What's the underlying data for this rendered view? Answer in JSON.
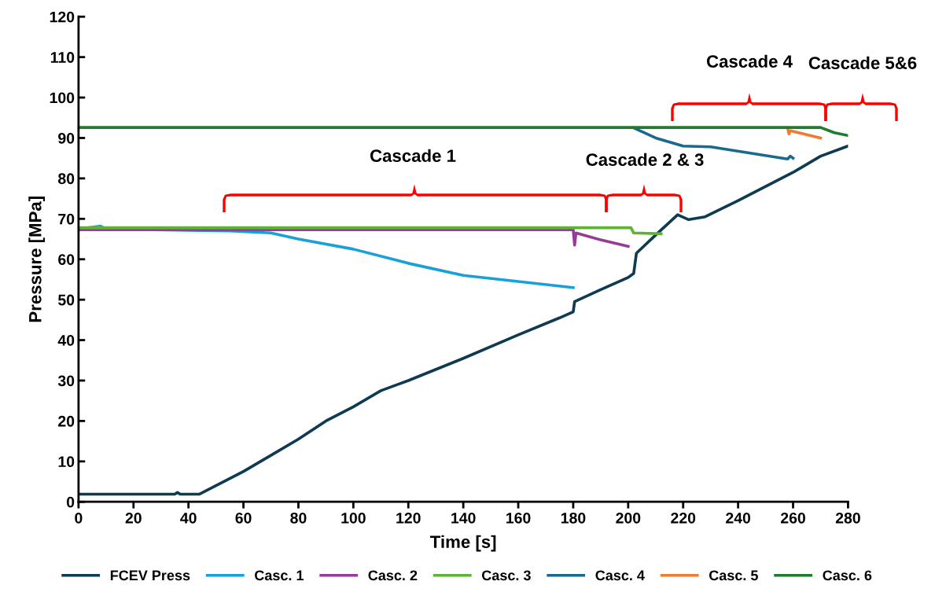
{
  "chart_data": {
    "type": "line",
    "xlabel": "Time [s]",
    "ylabel": "Pressure [MPa]",
    "xlim": [
      0,
      280
    ],
    "xticks": [
      0,
      20,
      40,
      60,
      80,
      100,
      120,
      140,
      160,
      180,
      200,
      220,
      240,
      260,
      280
    ],
    "ylim": [
      0,
      120
    ],
    "yticks": [
      0,
      10,
      20,
      30,
      40,
      50,
      60,
      70,
      80,
      90,
      100,
      110,
      120
    ],
    "grid": false,
    "legend": "bottom",
    "marker": "none",
    "line_style": "solid",
    "series": [
      {
        "name": "FCEV Press",
        "color": "#0e3a52",
        "x": [
          0,
          35,
          36,
          37,
          44,
          50,
          60,
          70,
          80,
          90,
          100,
          110,
          120,
          140,
          160,
          175,
          180,
          180.5,
          190,
          200,
          202,
          203,
          210,
          218,
          222,
          228,
          240,
          260,
          270,
          280
        ],
        "values": [
          1.9,
          1.9,
          2.3,
          1.9,
          1.9,
          4,
          7.5,
          11.5,
          15.5,
          20,
          23.5,
          27.5,
          30,
          35.5,
          41.3,
          45.5,
          47,
          49.5,
          52.5,
          55.5,
          56.5,
          61.5,
          66,
          71,
          69.8,
          70.5,
          74.5,
          81.5,
          85.5,
          88
        ]
      },
      {
        "name": "Casc. 1",
        "color": "#1aa0d8",
        "x": [
          0,
          8,
          10,
          55,
          70,
          80,
          100,
          120,
          140,
          160,
          180
        ],
        "values": [
          67.5,
          68.2,
          67.5,
          67,
          66.5,
          65,
          62.5,
          59,
          56,
          54.5,
          53
        ]
      },
      {
        "name": "Casc. 2",
        "color": "#953d96",
        "x": [
          0,
          180,
          180.5,
          181,
          190,
          200
        ],
        "values": [
          67.3,
          67.3,
          63.5,
          66.5,
          64.8,
          63.2
        ]
      },
      {
        "name": "Casc. 3",
        "color": "#5fb233",
        "x": [
          0,
          201,
          202,
          212
        ],
        "values": [
          67.8,
          67.8,
          66.5,
          66.3
        ]
      },
      {
        "name": "Casc. 4",
        "color": "#1a6a8f",
        "x": [
          202,
          210,
          220,
          230,
          258,
          259,
          260
        ],
        "values": [
          92.5,
          90,
          88,
          87.8,
          84.8,
          85.5,
          85
        ]
      },
      {
        "name": "Casc. 5",
        "color": "#ed7d31",
        "x": [
          258,
          258.5,
          259,
          270
        ],
        "values": [
          92.5,
          91,
          91.8,
          90
        ]
      },
      {
        "name": "Casc. 6",
        "color": "#217a2e",
        "x": [
          0,
          270,
          275,
          280
        ],
        "values": [
          92.6,
          92.6,
          91.3,
          90.6
        ]
      }
    ],
    "annotations": [
      "Cascade 1",
      "Cascade 2 & 3",
      "Cascade 4",
      "Cascade 5&6"
    ]
  }
}
